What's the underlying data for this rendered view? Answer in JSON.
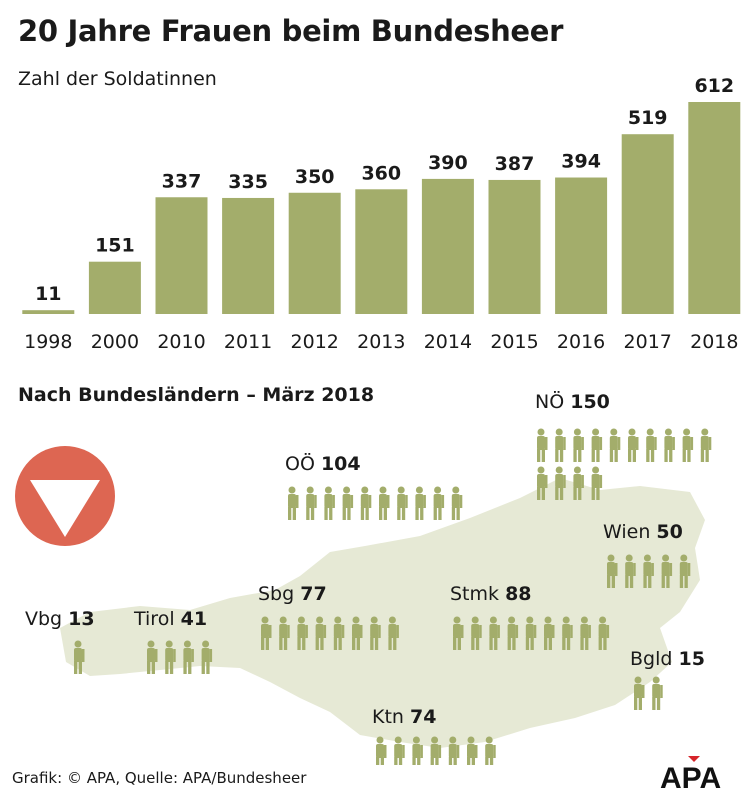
{
  "title": "20 Jahre Frauen beim Bundesheer",
  "subtitle": "Zahl der Soldatinnen",
  "section_title": "Nach Bundesländern – März 2018",
  "source": "Grafik: © APA, Quelle: APA/Bundesheer",
  "logo_text": "APA",
  "colors": {
    "bar": "#a3ad6b",
    "soldier": "#a3ad6b",
    "map": "#e6e9d5",
    "emblem": "#dd6652",
    "logo_accent": "#d6242a"
  },
  "chart_data": {
    "type": "bar",
    "title": "20 Jahre Frauen beim Bundesheer",
    "subtitle": "Zahl der Soldatinnen",
    "xlabel": "",
    "ylabel": "",
    "categories": [
      "1998",
      "2000",
      "2010",
      "2011",
      "2012",
      "2013",
      "2014",
      "2015",
      "2016",
      "2017",
      "2018"
    ],
    "values": [
      11,
      151,
      337,
      335,
      350,
      360,
      390,
      387,
      394,
      519,
      612
    ],
    "ylim": [
      0,
      612
    ],
    "grid": false,
    "data_labels": true
  },
  "regions": [
    {
      "label": "NÖ",
      "value": 150,
      "icons": 14
    },
    {
      "label": "OÖ",
      "value": 104,
      "icons": 10
    },
    {
      "label": "Wien",
      "value": 50,
      "icons": 5
    },
    {
      "label": "Sbg",
      "value": 77,
      "icons": 8
    },
    {
      "label": "Stmk",
      "value": 88,
      "icons": 9
    },
    {
      "label": "Vbg",
      "value": 13,
      "icons": 1
    },
    {
      "label": "Tirol",
      "value": 41,
      "icons": 4
    },
    {
      "label": "Bgld",
      "value": 15,
      "icons": 2
    },
    {
      "label": "Ktn",
      "value": 74,
      "icons": 7
    }
  ]
}
